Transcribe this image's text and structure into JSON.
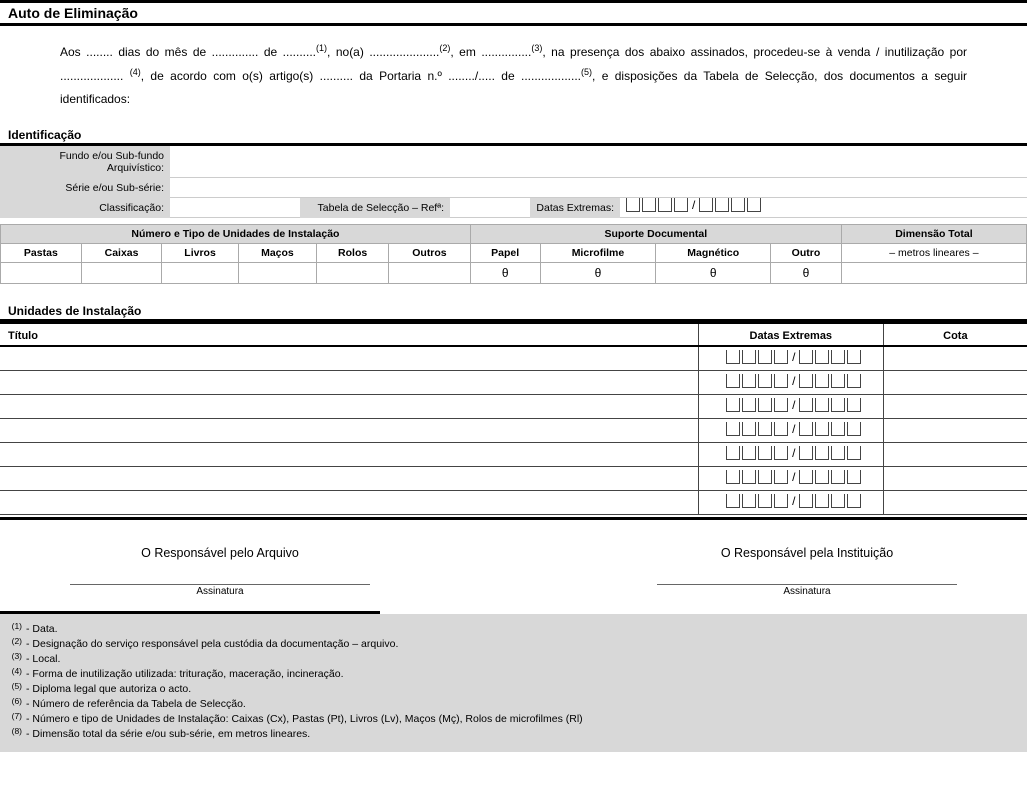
{
  "title": "Auto de Eliminação",
  "intro": {
    "l1a": "Aos ........ dias do mês de .............. de ..........",
    "s1": "(1)",
    "l1b": ", no(a) .....................",
    "s2": "(2)",
    "l1c": ", em ...............",
    "s3": "(3)",
    "l1d": ", na presença dos abaixo assinados, procedeu-se à venda / inutilização por ...................",
    "s4": "(4)",
    "l1e": ", de acordo com o(s) artigo(s) .......... da Portaria n.º ......../..... de ..................",
    "s5": "(5)",
    "l1f": ", e disposições da Tabela de Selecção, dos documentos a seguir identificados:"
  },
  "identificacao": {
    "heading": "Identificação",
    "fundo_lbl": "Fundo e/ou Sub-fundo Arquivístico:",
    "serie_lbl": "Série e/ou Sub-série:",
    "class_lbl": "Classificação:",
    "tabela_lbl": "Tabela de Selecção – Refª:",
    "datas_lbl": "Datas Extremas:"
  },
  "inst_table": {
    "h_num": "Número e Tipo de Unidades de Instalação",
    "h_sup": "Suporte Documental",
    "h_dim": "Dimensão Total",
    "dim_sub": "– metros lineares –",
    "cols": [
      "Pastas",
      "Caixas",
      "Livros",
      "Maços",
      "Rolos",
      "Outros",
      "Papel",
      "Microfilme",
      "Magnético",
      "Outro"
    ],
    "theta": "θ"
  },
  "units": {
    "heading": "Unidades de Instalação",
    "col_titulo": "Título",
    "col_datas": "Datas Extremas",
    "col_cota": "Cota",
    "rows": 7
  },
  "sign": {
    "left": "O Responsável pelo Arquivo",
    "right": "O Responsável pela Instituição",
    "assinatura": "Assinatura"
  },
  "footnotes": [
    {
      "n": "(1)",
      "t": "- Data."
    },
    {
      "n": "(2)",
      "t": "- Designação do serviço responsável pela custódia da documentação – arquivo."
    },
    {
      "n": "(3)",
      "t": "- Local."
    },
    {
      "n": "(4)",
      "t": "- Forma de inutilização utilizada: trituração, maceração, incineração."
    },
    {
      "n": "(5)",
      "t": "- Diploma legal que autoriza o acto."
    },
    {
      "n": "(6)",
      "t": "- Número de referência da Tabela de Selecção."
    },
    {
      "n": "(7)",
      "t": "- Número e tipo de Unidades de Instalação: Caixas (Cx), Pastas (Pt), Livros (Lv), Maços (Mç), Rolos de microfilmes (Rl)"
    },
    {
      "n": "(8)",
      "t": "- Dimensão total da série e/ou sub-série, em metros lineares."
    }
  ]
}
